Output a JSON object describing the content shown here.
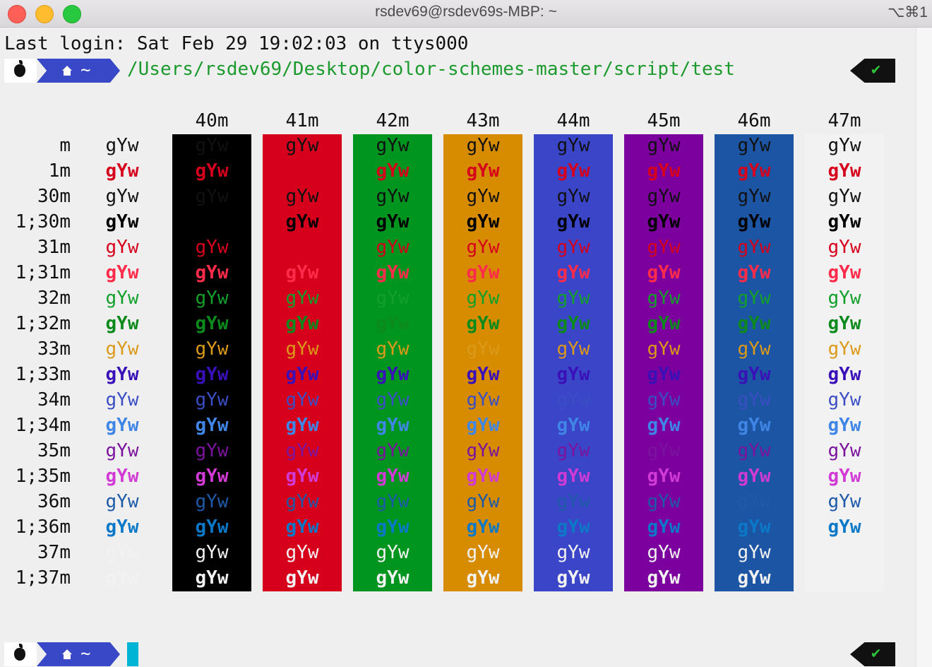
{
  "window": {
    "title": "rsdev69@rsdev69s-MBP: ~",
    "shortcut": "⌥⌘1"
  },
  "terminal": {
    "last_login": "Last login: Sat Feb 29 19:02:03 on ttys000",
    "prompt": {
      "home": "~",
      "path": "/Users/rsdev69/Desktop/color-schemes-master/script/test",
      "status": "✔"
    }
  },
  "color_table": {
    "sample_text": "gYw",
    "backgrounds": [
      {
        "label": "40m",
        "color": "#000000"
      },
      {
        "label": "41m",
        "color": "#d6001c"
      },
      {
        "label": "42m",
        "color": "#00951f"
      },
      {
        "label": "43m",
        "color": "#d78c00"
      },
      {
        "label": "44m",
        "color": "#3a45c8"
      },
      {
        "label": "45m",
        "color": "#7b009e"
      },
      {
        "label": "46m",
        "color": "#1c55a3"
      },
      {
        "label": "47m",
        "color": "#f2f2f2"
      }
    ],
    "rows": [
      {
        "label": "m",
        "color": "#111111",
        "bold": false
      },
      {
        "label": "1m",
        "color": "#d6001c",
        "bold": true
      },
      {
        "label": "30m",
        "color": "#111111",
        "bold": false
      },
      {
        "label": "1;30m",
        "color": "#000000",
        "bold": true
      },
      {
        "label": "31m",
        "color": "#d6001c",
        "bold": false
      },
      {
        "label": "1;31m",
        "color": "#ff2b4a",
        "bold": true
      },
      {
        "label": "32m",
        "color": "#12a02a",
        "bold": false
      },
      {
        "label": "1;32m",
        "color": "#0c8a1c",
        "bold": true
      },
      {
        "label": "33m",
        "color": "#dc9a1a",
        "bold": false
      },
      {
        "label": "1;33m",
        "color": "#3a10b8",
        "bold": true
      },
      {
        "label": "34m",
        "color": "#3b4ec4",
        "bold": false
      },
      {
        "label": "1;34m",
        "color": "#3f86e6",
        "bold": true
      },
      {
        "label": "35m",
        "color": "#7b139e",
        "bold": false
      },
      {
        "label": "1;35m",
        "color": "#d13ad4",
        "bold": true
      },
      {
        "label": "36m",
        "color": "#1e5aa8",
        "bold": false
      },
      {
        "label": "1;36m",
        "color": "#0c78c8",
        "bold": true
      },
      {
        "label": "37m",
        "color": "#f2f2f2",
        "bold": false
      },
      {
        "label": "1;37m",
        "color": "#f2f2f2",
        "bold": true
      }
    ]
  }
}
